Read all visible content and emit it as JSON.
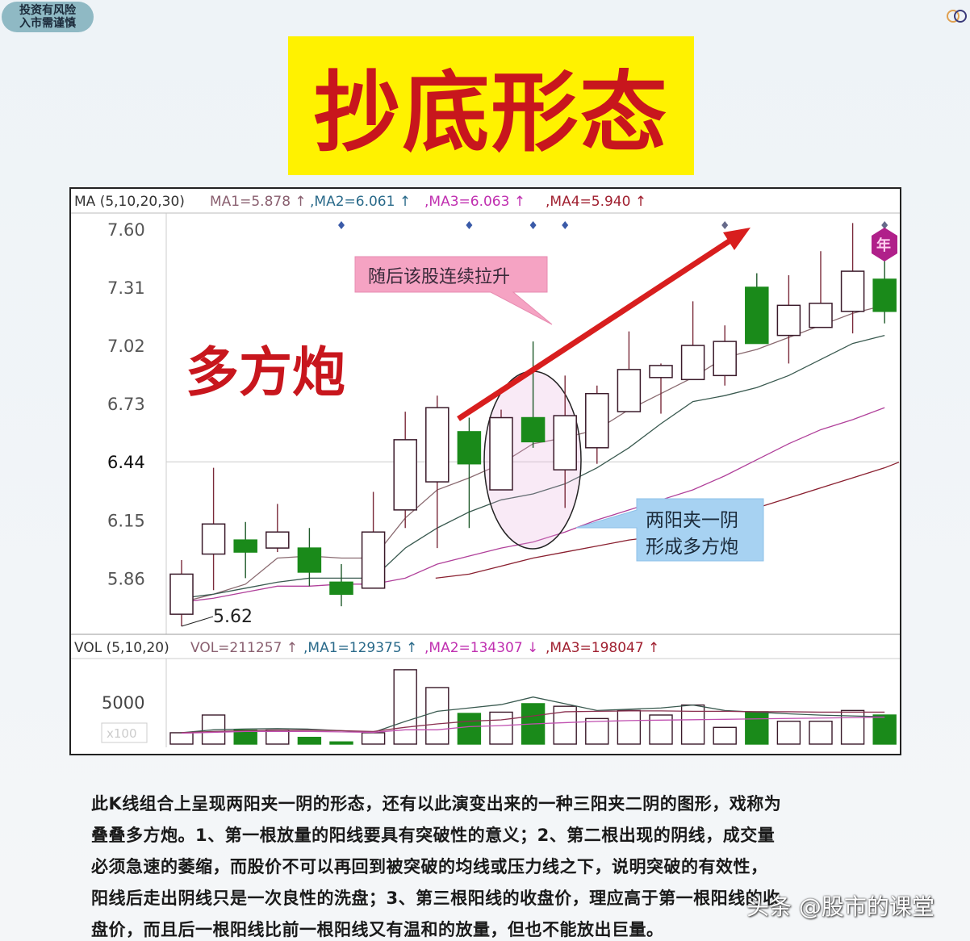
{
  "badge": {
    "line1": "投资有风险",
    "line2": "入市需谨慎"
  },
  "title": "抄底形态",
  "watermark": "头条 @股市的课堂",
  "paragraph": [
    "此K线组合上呈现两阳夹一阴的形态，还有以此演变出来的一种三阳夹二阴的图形，戏称为",
    "叠叠多方炮。1、第一根放量的阳线要具有突破性的意义；2、第二根出现的阴线，成交量",
    "必须急速的萎缩，而股价不可以再回到被突破的均线或压力线之下，说明突破的有效性，",
    "阳线后走出阴线只是一次良性的洗盘；3、第三根阳线的收盘价，理应高于第一根阳线的收",
    "盘价，而且后一根阳线比前一根阳线又有温和的放量，但也不能放出巨量。"
  ],
  "colors": {
    "up": "#ffffff",
    "up_stroke": "#7a2a3a",
    "down": "#1a8a1a",
    "title_bg": "#fff200",
    "title_text": "#c8161d",
    "arrow": "#d81e1e",
    "ma1": "#8a6a70",
    "ma2": "#3a5a50",
    "ma3": "#b0409a",
    "ma4": "#8a2030"
  },
  "chart_data": [
    {
      "type": "candlestick",
      "legend": {
        "label": "MA (5,10,20,30)",
        "items": [
          "MA1=5.878 ↑",
          ",MA2=6.061 ↑",
          ",MA3=6.063 ↑",
          ",MA4=5.940 ↑"
        ]
      },
      "ylim": [
        5.6,
        7.68
      ],
      "yticks": [
        "7.60",
        "7.31",
        "7.02",
        "6.73",
        "6.44",
        "6.15",
        "5.86"
      ],
      "grid": "horizontal line at 6.44",
      "candles": [
        {
          "o": 5.68,
          "h": 5.95,
          "l": 5.62,
          "c": 5.88
        },
        {
          "o": 5.98,
          "h": 6.41,
          "l": 5.8,
          "c": 6.13
        },
        {
          "o": 6.05,
          "h": 6.14,
          "l": 5.86,
          "c": 5.99
        },
        {
          "o": 6.01,
          "h": 6.23,
          "l": 5.99,
          "c": 6.09
        },
        {
          "o": 6.01,
          "h": 6.11,
          "l": 5.82,
          "c": 5.89
        },
        {
          "o": 5.84,
          "h": 5.93,
          "l": 5.72,
          "c": 5.78
        },
        {
          "o": 5.81,
          "h": 6.29,
          "l": 5.81,
          "c": 6.09
        },
        {
          "o": 6.2,
          "h": 6.69,
          "l": 6.11,
          "c": 6.55
        },
        {
          "o": 6.34,
          "h": 6.77,
          "l": 6.01,
          "c": 6.71
        },
        {
          "o": 6.59,
          "h": 6.66,
          "l": 6.11,
          "c": 6.43
        },
        {
          "o": 6.3,
          "h": 6.7,
          "l": 6.3,
          "c": 6.66
        },
        {
          "o": 6.66,
          "h": 7.04,
          "l": 6.51,
          "c": 6.54
        },
        {
          "o": 6.4,
          "h": 6.87,
          "l": 6.21,
          "c": 6.67
        },
        {
          "o": 6.51,
          "h": 6.82,
          "l": 6.43,
          "c": 6.78
        },
        {
          "o": 6.69,
          "h": 7.09,
          "l": 6.69,
          "c": 6.9
        },
        {
          "o": 6.86,
          "h": 6.93,
          "l": 6.68,
          "c": 6.92
        },
        {
          "o": 6.85,
          "h": 7.24,
          "l": 6.85,
          "c": 7.02
        },
        {
          "o": 6.87,
          "h": 7.12,
          "l": 6.82,
          "c": 7.04
        },
        {
          "o": 7.31,
          "h": 7.38,
          "l": 7.03,
          "c": 7.03
        },
        {
          "o": 7.07,
          "h": 7.37,
          "l": 6.93,
          "c": 7.22
        },
        {
          "o": 7.11,
          "h": 7.49,
          "l": 7.11,
          "c": 7.23
        },
        {
          "o": 7.19,
          "h": 7.63,
          "l": 7.08,
          "c": 7.39
        },
        {
          "o": 7.35,
          "h": 7.62,
          "l": 7.13,
          "c": 7.19
        }
      ],
      "series": [
        {
          "name": "MA1",
          "values": [
            5.74,
            5.78,
            5.83,
            5.96,
            5.97,
            5.96,
            5.96,
            6.16,
            6.3,
            6.36,
            6.43,
            6.53,
            6.56,
            6.6,
            6.7,
            6.78,
            6.86,
            6.96,
            7.0,
            7.06,
            7.12,
            7.18,
            7.22
          ]
        },
        {
          "name": "MA2",
          "values": [
            5.76,
            5.78,
            5.81,
            5.84,
            5.86,
            5.86,
            5.86,
            6.01,
            6.11,
            6.19,
            6.25,
            6.28,
            6.33,
            6.41,
            6.51,
            6.63,
            6.74,
            6.77,
            6.81,
            6.87,
            6.95,
            7.03,
            7.07
          ]
        },
        {
          "name": "MA3",
          "values": [
            5.74,
            5.76,
            5.79,
            5.82,
            5.82,
            5.83,
            5.83,
            5.86,
            5.93,
            5.97,
            6.01,
            6.04,
            6.09,
            6.15,
            6.2,
            6.25,
            6.3,
            6.37,
            6.45,
            6.53,
            6.6,
            6.65,
            6.71
          ]
        },
        {
          "name": "MA4",
          "values": [
            null,
            null,
            null,
            null,
            null,
            null,
            null,
            null,
            5.86,
            5.88,
            5.92,
            5.96,
            5.99,
            6.02,
            6.05,
            6.07,
            6.11,
            6.16,
            6.21,
            6.26,
            6.31,
            6.36,
            6.41
          ]
        }
      ],
      "annotations": {
        "big_label": "多方炮",
        "low_label": "5.62",
        "callout_rise": "随后该股连续拉升",
        "callout_pattern_line1": "两阳夹一阴",
        "callout_pattern_line2": "形成多方炮",
        "badge": "年",
        "marker_candles": [
          6,
          10,
          12,
          13,
          18,
          23
        ]
      }
    },
    {
      "type": "bar",
      "legend": {
        "label": "VOL (5,10,20)",
        "items": [
          "VOL=211257 ↑",
          ",MA1=129375 ↑",
          ",MA2=134307 ↓",
          ",MA3=198047 ↑"
        ]
      },
      "ylim": [
        0,
        9800
      ],
      "yticks": [
        "5000"
      ],
      "unit_label": "x100",
      "values": [
        1350,
        3460,
        1670,
        1670,
        800,
        260,
        1350,
        8850,
        6730,
        3650,
        3800,
        4810,
        4500,
        3040,
        4000,
        3460,
        4650,
        1990,
        3850,
        2720,
        2720,
        4000,
        3460
      ],
      "series": [
        {
          "name": "MA1",
          "values": [
            1350,
            1700,
            1800,
            1850,
            1780,
            1600,
            1400,
            2700,
            3900,
            4300,
            4700,
            5600,
            4800,
            4000,
            4150,
            4300,
            4650,
            4000,
            3800,
            3600,
            3450,
            3350,
            3250
          ]
        },
        {
          "name": "MA2",
          "values": [
            1350,
            1500,
            1600,
            1650,
            1650,
            1600,
            1500,
            2000,
            2400,
            2720,
            2880,
            3350,
            3850,
            3900,
            3950,
            3950,
            3900,
            3900,
            3850,
            3850,
            3800,
            3800,
            3800
          ]
        },
        {
          "name": "MA3",
          "values": [
            1300,
            1400,
            1500,
            1500,
            1500,
            1450,
            1400,
            1700,
            1700,
            2080,
            2200,
            2400,
            2550,
            2700,
            2800,
            2850,
            2900,
            2950,
            3000,
            3050,
            3100,
            3150,
            3200
          ]
        }
      ]
    }
  ]
}
